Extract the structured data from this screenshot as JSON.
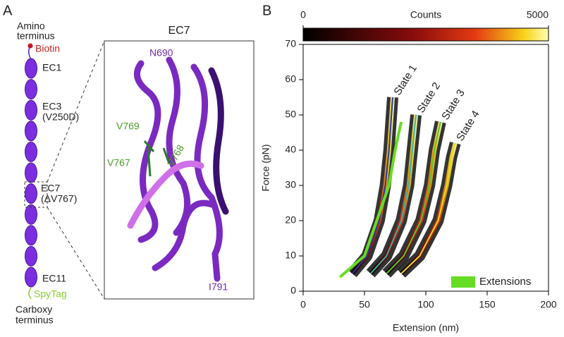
{
  "panel_a": {
    "label": "A",
    "amino": [
      "Amino",
      "terminus"
    ],
    "biotin": "Biotin",
    "domains": [
      "EC1",
      "EC3",
      "(V250D)",
      "EC7",
      "(ΔV767)",
      "EC11"
    ],
    "spytag": "SpyTag",
    "carboxy": [
      "Carboxy",
      "terminus"
    ],
    "inset_title": "EC7",
    "residues": [
      "N690",
      "V769",
      "V768",
      "V767",
      "I791"
    ]
  },
  "chart_data": {
    "type": "line",
    "panel_label": "B",
    "xlabel": "Extension (nm)",
    "ylabel": "Force (pN)",
    "xlim": [
      0,
      200
    ],
    "xticks": [
      0,
      50,
      100,
      150,
      200
    ],
    "ylim": [
      0,
      70
    ],
    "yticks": [
      0,
      10,
      20,
      30,
      40,
      50,
      60,
      70
    ],
    "colorbar": {
      "label": "Counts",
      "lim": [
        0,
        5000
      ],
      "ticks": [
        0,
        5000
      ]
    },
    "legend": "lower right",
    "series": [
      {
        "name": "State 1",
        "color": "#2b3a9c",
        "x": [
          40,
          52,
          62,
          67,
          70,
          73
        ],
        "values": [
          5,
          10,
          20,
          30,
          40,
          55
        ]
      },
      {
        "name": "State 2",
        "color": "#3ab3a0",
        "x": [
          55,
          68,
          80,
          86,
          89,
          92
        ],
        "values": [
          5,
          10,
          20,
          30,
          40,
          50
        ]
      },
      {
        "name": "State 3",
        "color": "#5fc22e",
        "x": [
          68,
          82,
          96,
          103,
          107,
          112
        ],
        "values": [
          5,
          10,
          20,
          30,
          40,
          48
        ]
      },
      {
        "name": "State 4",
        "color": "#e6dc1e",
        "x": [
          80,
          95,
          110,
          117,
          121,
          124
        ],
        "values": [
          5,
          10,
          20,
          30,
          38,
          42
        ]
      }
    ],
    "extensions": {
      "name": "Extensions",
      "color": "#66dd22",
      "x": [
        30,
        50,
        60,
        70,
        75,
        78,
        80
      ],
      "values": [
        4,
        10,
        20,
        30,
        40,
        45,
        48
      ]
    }
  }
}
